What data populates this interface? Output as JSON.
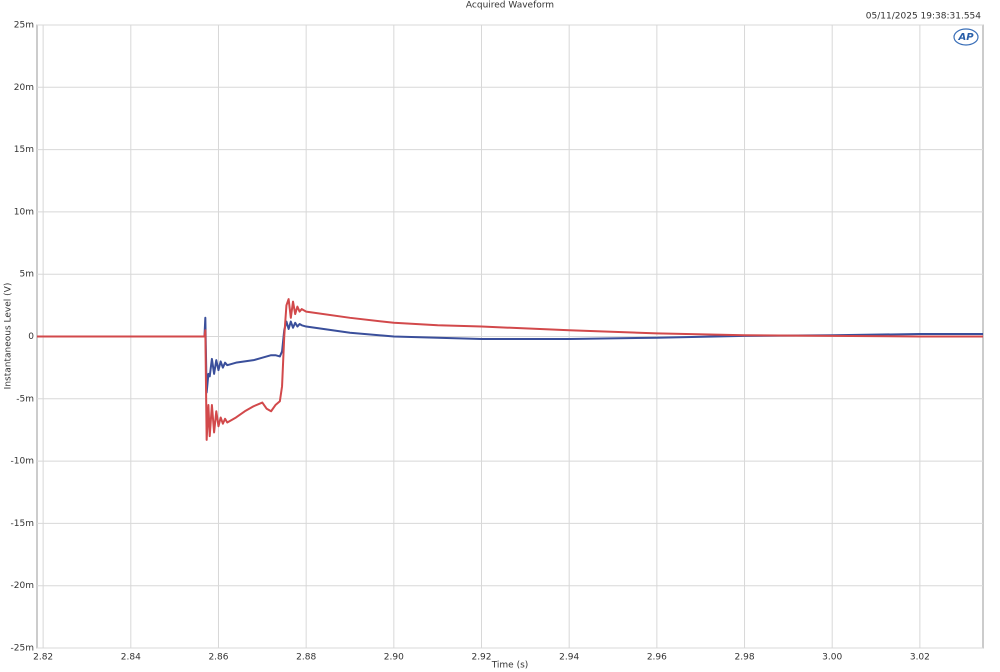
{
  "chart_data": {
    "type": "line",
    "title": "Acquired Waveform",
    "timestamp": "05/11/2025 19:38:31.554",
    "logo": "AP",
    "xlabel": "Time (s)",
    "ylabel": "Instantaneous Level (V)",
    "x": [
      2.8186,
      2.84,
      2.8568,
      2.857,
      2.8573,
      2.8577,
      2.858,
      2.8585,
      2.859,
      2.8595,
      2.86,
      2.8605,
      2.861,
      2.8615,
      2.862,
      2.863,
      2.864,
      2.866,
      2.868,
      2.87,
      2.871,
      2.872,
      2.873,
      2.874,
      2.8745,
      2.875,
      2.8755,
      2.876,
      2.8765,
      2.877,
      2.8775,
      2.878,
      2.8785,
      2.879,
      2.88,
      2.89,
      2.9,
      2.91,
      2.92,
      2.94,
      2.96,
      2.98,
      3.0,
      3.02,
      3.0344
    ],
    "series": [
      {
        "color": "#3a4f9b",
        "values": [
          0,
          0,
          0,
          0.0015,
          -0.0045,
          -0.003,
          -0.0032,
          -0.0018,
          -0.003,
          -0.0019,
          -0.0027,
          -0.002,
          -0.0025,
          -0.0021,
          -0.0023,
          -0.0022,
          -0.0021,
          -0.002,
          -0.0019,
          -0.0017,
          -0.0016,
          -0.0015,
          -0.0015,
          -0.0016,
          -0.0012,
          0.0005,
          0.0012,
          0.0006,
          0.0012,
          0.0007,
          0.0011,
          0.0008,
          0.001,
          0.0009,
          0.0008,
          0.0003,
          0,
          -0.0001,
          -0.0002,
          -0.0002,
          -0.0001,
          5e-05,
          0.0001,
          0.0002,
          0.0002
        ]
      },
      {
        "color": "#d2494b",
        "values": [
          0,
          0,
          0,
          0.0005,
          -0.0083,
          -0.0055,
          -0.008,
          -0.0055,
          -0.0077,
          -0.006,
          -0.0072,
          -0.0065,
          -0.007,
          -0.0066,
          -0.0069,
          -0.0067,
          -0.0065,
          -0.006,
          -0.0056,
          -0.0053,
          -0.0058,
          -0.006,
          -0.0055,
          -0.0052,
          -0.004,
          0,
          0.0025,
          0.003,
          0.0015,
          0.0028,
          0.0018,
          0.0024,
          0.002,
          0.0022,
          0.002,
          0.0015,
          0.0011,
          0.0009,
          0.0008,
          0.0005,
          0.00025,
          0.0001,
          5e-05,
          0,
          0
        ]
      }
    ],
    "xlim": [
      2.8186,
      3.0344
    ],
    "ylim": [
      -0.025,
      0.025
    ],
    "xticks": [
      2.82,
      2.84,
      2.86,
      2.88,
      2.9,
      2.92,
      2.94,
      2.96,
      2.98,
      3.0,
      3.02
    ],
    "xtick_labels": [
      "2.82",
      "2.84",
      "2.86",
      "2.88",
      "2.90",
      "2.92",
      "2.94",
      "2.96",
      "2.98",
      "3.00",
      "3.02"
    ],
    "yticks": [
      {
        "value": 0.025,
        "label": "25m"
      },
      {
        "value": 0.02,
        "label": "20m"
      },
      {
        "value": 0.015,
        "label": "15m"
      },
      {
        "value": 0.01,
        "label": "10m"
      },
      {
        "value": 0.005,
        "label": "5m"
      },
      0,
      {
        "value": -0.005,
        "label": "-5m"
      },
      {
        "value": -0.01,
        "label": "-10m"
      },
      {
        "value": -0.015,
        "label": "-15m"
      },
      {
        "value": -0.02,
        "label": "-20m"
      },
      {
        "value": -0.025,
        "label": "-25m"
      }
    ],
    "grid": true
  }
}
